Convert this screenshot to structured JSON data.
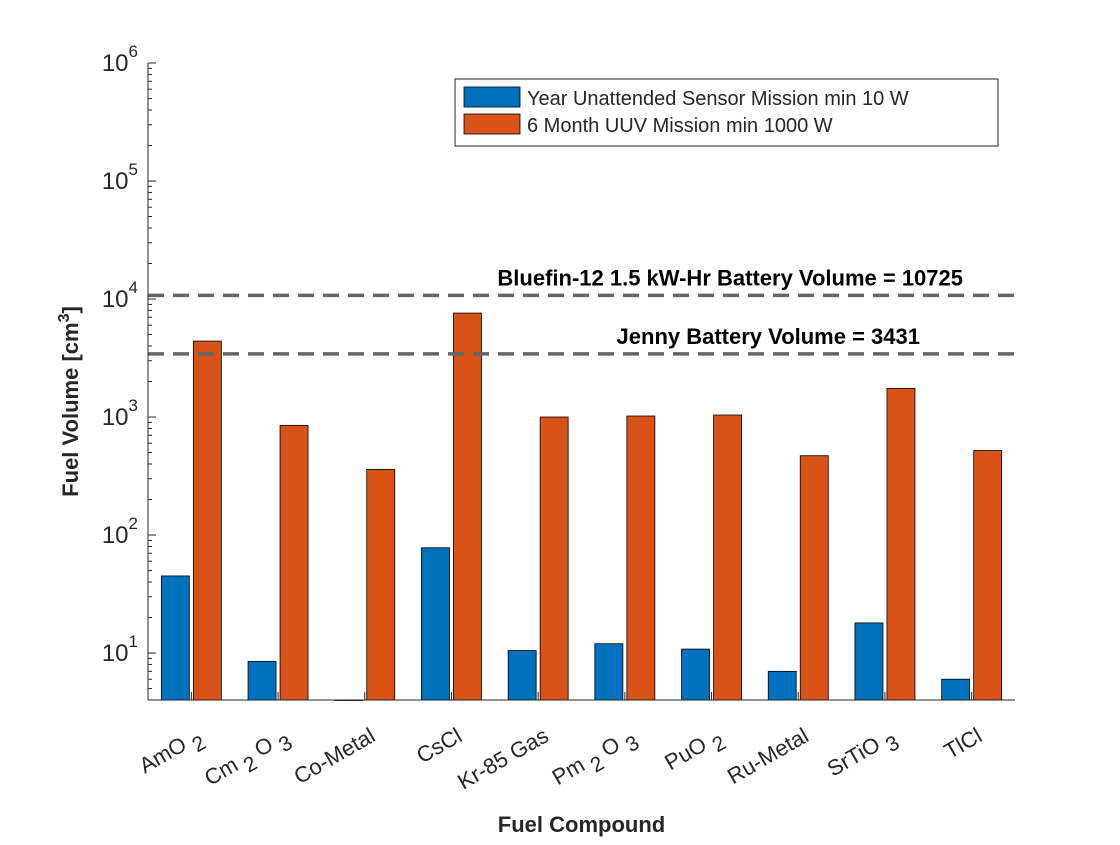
{
  "chart_data": {
    "type": "bar",
    "xlabel": "Fuel Compound",
    "ylabel": "Fuel Volume [cm",
    "ylabel_sup": "3",
    "ylabel_suffix": "]",
    "yscale": "log",
    "ylim": [
      4,
      1000000
    ],
    "yticks": [
      {
        "base": "10",
        "exp": "1"
      },
      {
        "base": "10",
        "exp": "2"
      },
      {
        "base": "10",
        "exp": "3"
      },
      {
        "base": "10",
        "exp": "4"
      },
      {
        "base": "10",
        "exp": "5"
      },
      {
        "base": "10",
        "exp": "6"
      }
    ],
    "categories": [
      {
        "base": "AmO",
        "sub": "2",
        "tail": ""
      },
      {
        "base": "Cm",
        "sub": "2",
        "tail": "O",
        "sub2": "3"
      },
      {
        "base": "Co-Metal",
        "sub": "",
        "tail": ""
      },
      {
        "base": "CsCl",
        "sub": "",
        "tail": ""
      },
      {
        "base": "Kr-85 Gas",
        "sub": "",
        "tail": ""
      },
      {
        "base": "Pm",
        "sub": "2",
        "tail": "O",
        "sub2": "3"
      },
      {
        "base": "PuO",
        "sub": "2",
        "tail": ""
      },
      {
        "base": "Ru-Metal",
        "sub": "",
        "tail": ""
      },
      {
        "base": "SrTiO",
        "sub": "3",
        "tail": ""
      },
      {
        "base": "TlCl",
        "sub": "",
        "tail": ""
      }
    ],
    "series": [
      {
        "name": "Year Unattended Sensor Mission min 10 W",
        "color": "#0072BD",
        "values": [
          45,
          8.5,
          4,
          78,
          10.5,
          12,
          10.8,
          7,
          18,
          6
        ]
      },
      {
        "name": "6 Month UUV Mission min 1000 W",
        "color": "#D95319",
        "values": [
          4400,
          850,
          360,
          7600,
          1000,
          1020,
          1040,
          470,
          1750,
          520
        ]
      }
    ],
    "reference_lines": [
      {
        "label": "Bluefin-12 1.5 kW-Hr Battery Volume = 10725",
        "value": 10725
      },
      {
        "label": "Jenny Battery Volume = 3431",
        "value": 3431
      }
    ],
    "legend_position": "top-right",
    "grid": false
  }
}
